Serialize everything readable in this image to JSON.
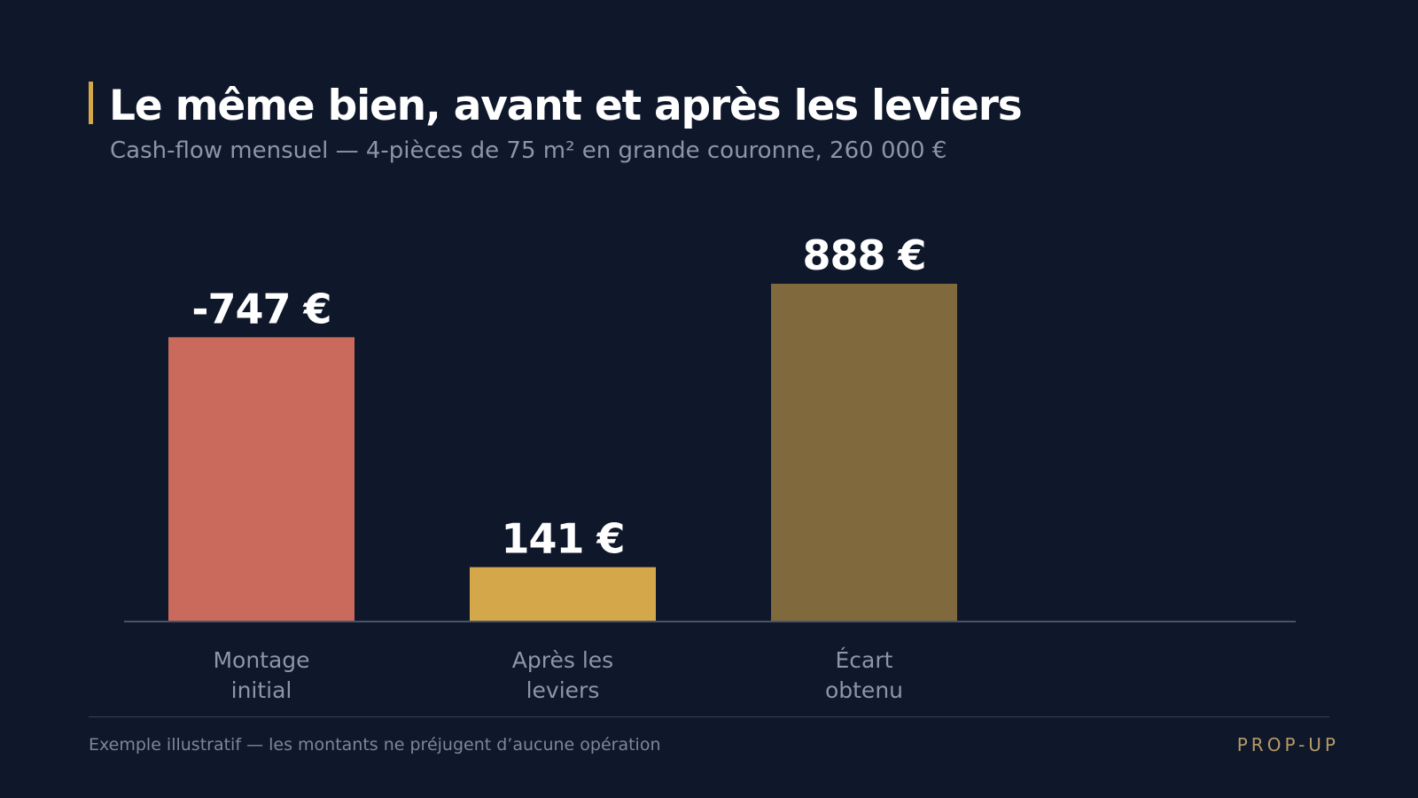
{
  "header": {
    "title": "Le même bien, avant et après les leviers",
    "subtitle": "Cash-flow mensuel — 4-pièces de 75 m² en grande couronne, 260 000 €"
  },
  "chart_data": {
    "type": "bar",
    "title": "Le même bien, avant et après les leviers",
    "subtitle": "Cash-flow mensuel — 4-pièces de 75 m² en grande couronne, 260 000 €",
    "categories": [
      "Montage initial",
      "Après les leviers",
      "Écart obtenu"
    ],
    "category_lines": [
      [
        "Montage",
        "initial"
      ],
      [
        "Après les",
        "leviers"
      ],
      [
        "Écart",
        "obtenu"
      ]
    ],
    "values": [
      -747,
      141,
      888
    ],
    "value_labels": [
      "-747 €",
      "141 €",
      "888 €"
    ],
    "colors": [
      "#c96a5c",
      "#d4a84a",
      "#80693c"
    ],
    "bar_magnitude_scale": "absolute value",
    "ylim": [
      0,
      888
    ],
    "grid": false,
    "legend": "none",
    "xlabel": "",
    "ylabel": ""
  },
  "footer": {
    "note": "Exemple illustratif — les montants ne préjugent d’aucune opération",
    "brand": "PROP-UP"
  }
}
